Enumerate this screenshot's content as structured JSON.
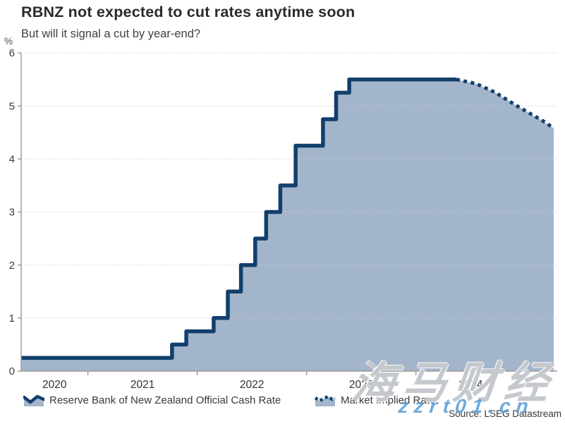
{
  "header": {
    "title": "RBNZ not expected to cut rates anytime soon",
    "subtitle": "But will it signal a cut by year-end?"
  },
  "chart_data": {
    "type": "area",
    "unit_label": "%",
    "x_domain": [
      2020.39,
      2025.26
    ],
    "y_domain": [
      0,
      6
    ],
    "y_ticks": [
      0,
      1,
      2,
      3,
      4,
      5,
      6
    ],
    "x_year_boundaries": [
      2021,
      2022,
      2023,
      2024,
      2025
    ],
    "x_labels": [
      2020,
      2021,
      2022,
      2023,
      2024
    ],
    "grid": "dotted horizontal",
    "legend_position": "bottom",
    "colors": {
      "line": "#123f6c",
      "fill": "#a3b5ca",
      "grid": "#c7cbd1",
      "axis": "#999999",
      "tick_text": "#3a3a3a"
    },
    "series": [
      {
        "name": "Reserve Bank of New Zealand Official Cash Rate",
        "style": "solid-step",
        "points": [
          [
            2020.39,
            0.25
          ],
          [
            2021.77,
            0.5
          ],
          [
            2021.9,
            0.75
          ],
          [
            2022.15,
            1.0
          ],
          [
            2022.28,
            1.5
          ],
          [
            2022.4,
            2.0
          ],
          [
            2022.53,
            2.5
          ],
          [
            2022.63,
            3.0
          ],
          [
            2022.76,
            3.5
          ],
          [
            2022.9,
            4.25
          ],
          [
            2023.15,
            4.75
          ],
          [
            2023.27,
            5.25
          ],
          [
            2023.39,
            5.5
          ],
          [
            2024.37,
            5.5
          ]
        ]
      },
      {
        "name": "Market Implied Rate",
        "style": "dotted",
        "points": [
          [
            2024.37,
            5.5
          ],
          [
            2024.55,
            5.42
          ],
          [
            2024.72,
            5.26
          ],
          [
            2024.9,
            5.03
          ],
          [
            2025.05,
            4.85
          ],
          [
            2025.16,
            4.72
          ],
          [
            2025.26,
            4.58
          ]
        ]
      }
    ]
  },
  "watermarks": {
    "cjk": "海马财经",
    "latin": "zzrt01.cn"
  },
  "source": "Source: LSEG Datastream"
}
